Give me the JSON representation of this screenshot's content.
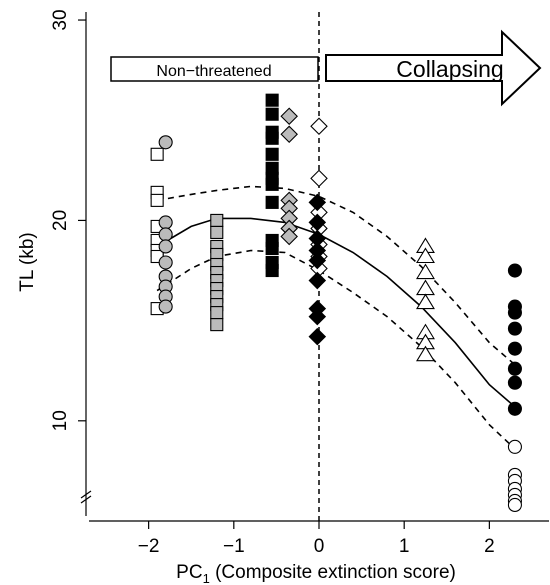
{
  "chart_data": {
    "type": "scatter",
    "xlabel_main": "PC",
    "xlabel_sub": "1",
    "xlabel_rest": " (Composite extinction score)",
    "ylabel": "TL (kb)",
    "xlim": [
      -2.7,
      2.7
    ],
    "ylim": [
      5.0,
      31.0
    ],
    "axis_break": "y",
    "x_ticks": [
      -2,
      -1,
      0,
      1,
      2
    ],
    "x_tick_labels": [
      "−2",
      "−1",
      "0",
      "1",
      "2"
    ],
    "y_ticks": [
      10,
      20,
      30
    ],
    "y_tick_labels": [
      "10",
      "20",
      "30"
    ],
    "vline_x": 0,
    "arrows": {
      "left_label": "Non−threatened",
      "right_label": "Collapsing"
    },
    "fit": {
      "mean": {
        "x": [
          -1.9,
          -1.5,
          -1.2,
          -0.8,
          -0.4,
          0.0,
          0.4,
          0.8,
          1.2,
          1.6,
          2.0,
          2.3
        ],
        "y": [
          18.7,
          19.7,
          20.1,
          20.1,
          19.9,
          19.3,
          18.4,
          17.2,
          15.7,
          13.9,
          11.8,
          10.7
        ]
      },
      "upper": {
        "x": [
          -1.9,
          -1.5,
          -1.2,
          -0.8,
          -0.4,
          0.0,
          0.4,
          0.8,
          1.2,
          1.6,
          2.0,
          2.3
        ],
        "y": [
          21.0,
          21.3,
          21.5,
          21.7,
          21.6,
          21.2,
          20.4,
          19.2,
          17.7,
          15.9,
          13.9,
          12.8
        ]
      },
      "lower": {
        "x": [
          -1.9,
          -1.5,
          -1.2,
          -0.8,
          -0.4,
          0.0,
          0.4,
          0.8,
          1.2,
          1.6,
          2.0,
          2.3
        ],
        "y": [
          16.5,
          17.6,
          18.2,
          18.5,
          18.4,
          17.5,
          16.4,
          15.2,
          13.7,
          11.9,
          9.8,
          8.6
        ]
      }
    },
    "series": [
      {
        "marker": "square",
        "fill": "#ffffff",
        "x": -1.9,
        "values": [
          23.3,
          21.4,
          21.0,
          19.7,
          19.0,
          18.5,
          18.2,
          15.6
        ]
      },
      {
        "marker": "circle",
        "fill": "#bbbbbb",
        "x": -1.8,
        "values": [
          23.9,
          19.9,
          19.3,
          18.7,
          17.9,
          17.2,
          16.7,
          16.2,
          15.7
        ]
      },
      {
        "marker": "square",
        "fill": "#bbbbbb",
        "x": -1.2,
        "values": [
          20.0,
          19.4,
          18.7,
          18.3,
          17.8,
          17.4,
          17.0,
          16.6,
          16.2,
          15.8,
          15.4,
          14.8
        ]
      },
      {
        "marker": "square",
        "fill": "#000000",
        "x": -0.55,
        "values": [
          26.0,
          25.3,
          24.4,
          24.1,
          23.3,
          22.6,
          22.1,
          21.8,
          20.9,
          19.0,
          18.6,
          17.9,
          17.5
        ]
      },
      {
        "marker": "diamond",
        "fill": "#bbbbbb",
        "x": -0.35,
        "values": [
          25.2,
          24.3,
          21.0,
          20.6,
          20.1,
          19.6,
          19.2
        ]
      },
      {
        "marker": "diamond",
        "fill": "#ffffff",
        "x": 0.0,
        "values": [
          24.7,
          22.1,
          20.4,
          19.6,
          18.8,
          18.2,
          17.6
        ]
      },
      {
        "marker": "diamond",
        "fill": "#000000",
        "x": -0.02,
        "values": [
          20.9,
          19.9,
          19.1,
          18.5,
          18.0,
          17.0,
          15.6,
          15.2,
          14.2
        ]
      },
      {
        "marker": "triangle",
        "fill": "#ffffff",
        "x": 1.25,
        "values": [
          18.7,
          18.2,
          17.4,
          16.6,
          15.9,
          14.4,
          13.9,
          13.3
        ]
      },
      {
        "marker": "circle",
        "fill": "#000000",
        "x": 2.3,
        "values": [
          17.5,
          15.7,
          15.4,
          14.6,
          13.6,
          12.6,
          11.9,
          10.6
        ]
      },
      {
        "marker": "circle",
        "fill": "#ffffff",
        "x": 2.3,
        "values": [
          8.7,
          7.3,
          7.0,
          6.6,
          6.3,
          6.0,
          5.8
        ]
      }
    ]
  }
}
